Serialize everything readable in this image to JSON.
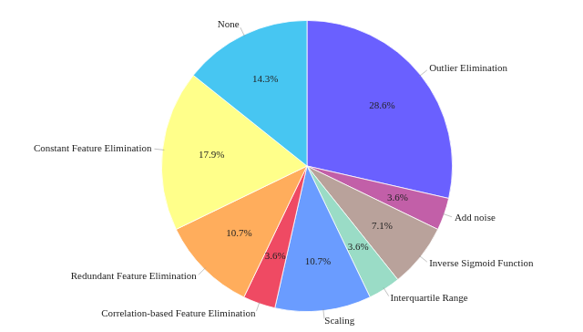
{
  "chart_data": {
    "type": "pie",
    "categories": [
      "Outlier Elimination",
      "Add noise",
      "Inverse Sigmoid Function",
      "Interquartile Range",
      "Scaling",
      "Correlation-based Feature Elimination",
      "Redundant Feature Elimination",
      "Constant Feature Elimination",
      "None"
    ],
    "values": [
      28.6,
      3.6,
      7.1,
      3.6,
      10.7,
      3.6,
      10.7,
      17.9,
      14.3
    ],
    "value_labels": [
      "28.6%",
      "3.6%",
      "7.1%",
      "3.6%",
      "10.7%",
      "3.6%",
      "10.7%",
      "17.9%",
      "14.3%"
    ],
    "colors": [
      "#6a60ff",
      "#c25fa8",
      "#b9a29b",
      "#9adcc6",
      "#6a9cff",
      "#ef4a63",
      "#ffad5c",
      "#ffff8a",
      "#47c6f2"
    ],
    "data_labels": true
  }
}
